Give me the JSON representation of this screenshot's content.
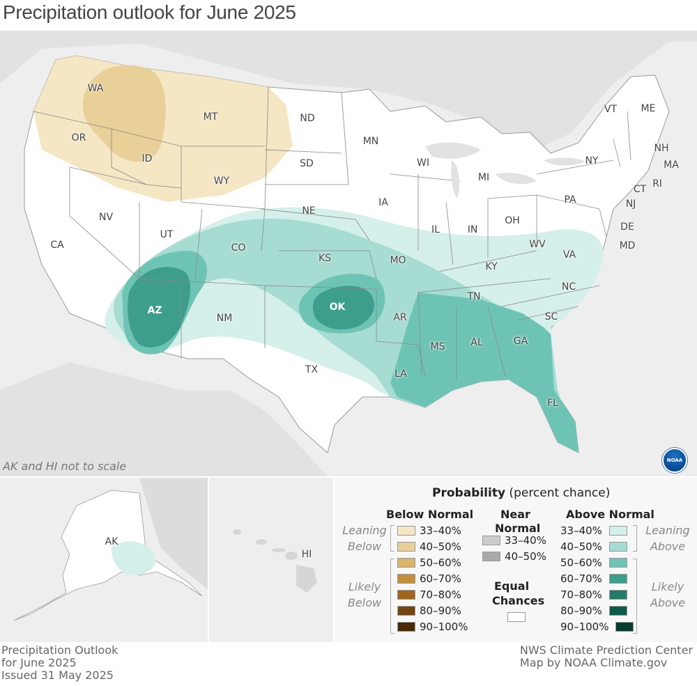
{
  "title": "Precipitation outlook for June 2025",
  "scale_note": "AK and HI not to scale",
  "noaa_logo": "NOAA",
  "colors": {
    "below_33_40": "#f5e6c4",
    "below_40_50": "#e9cf98",
    "near_33_40": "#cccccc",
    "near_40_50": "#a9a9a9",
    "above_33_40": "#d5efea",
    "above_40_50": "#a6dcd2",
    "above_50_60": "#6ec4b4",
    "above_60_70": "#3d9e8c",
    "above_70_80": "#257a69",
    "above_80_90": "#0f5a4b",
    "above_90_100": "#073a30",
    "equal": "#ffffff",
    "background": "#eeeeee"
  },
  "states": {
    "WA": "WA",
    "OR": "OR",
    "ID": "ID",
    "MT": "MT",
    "ND": "ND",
    "SD": "SD",
    "WY": "WY",
    "MN": "MN",
    "WI": "WI",
    "MI": "MI",
    "IA": "IA",
    "NE": "NE",
    "NV": "NV",
    "CA": "CA",
    "UT": "UT",
    "CO": "CO",
    "KS": "KS",
    "MO": "MO",
    "IL": "IL",
    "IN": "IN",
    "OH": "OH",
    "PA": "PA",
    "NY": "NY",
    "VT": "VT",
    "ME": "ME",
    "NH": "NH",
    "MA": "MA",
    "RI": "RI",
    "CT": "CT",
    "NJ": "NJ",
    "DE": "DE",
    "MD": "MD",
    "WV": "WV",
    "VA": "VA",
    "KY": "KY",
    "TN": "TN",
    "NC": "NC",
    "SC": "SC",
    "AZ": "AZ",
    "NM": "NM",
    "OK": "OK",
    "AR": "AR",
    "TX": "TX",
    "LA": "LA",
    "MS": "MS",
    "AL": "AL",
    "GA": "GA",
    "FL": "FL",
    "AK": "AK",
    "HI": "HI"
  },
  "legend": {
    "title_bold": "Probability",
    "title_rest": " (percent chance)",
    "below_head": "Below Normal",
    "near_head_1": "Near",
    "near_head_2": "Normal",
    "above_head": "Above Normal",
    "equal_1": "Equal",
    "equal_2": "Chances",
    "leaning_below_1": "Leaning",
    "leaning_below_2": "Below",
    "likely_below_1": "Likely",
    "likely_below_2": "Below",
    "leaning_above_1": "Leaning",
    "leaning_above_2": "Above",
    "likely_above_1": "Likely",
    "likely_above_2": "Above",
    "ranges": [
      "33–40%",
      "40–50%",
      "50–60%",
      "60–70%",
      "70–80%",
      "80–90%",
      "90–100%"
    ],
    "near_ranges": [
      "33–40%",
      "40–50%"
    ],
    "below_colors": [
      "#f5e6c4",
      "#e9cf98",
      "#d9b46a",
      "#c48e3f",
      "#a0661c",
      "#744510",
      "#4a2a07"
    ],
    "above_colors": [
      "#d5efea",
      "#a6dcd2",
      "#6ec4b4",
      "#3d9e8c",
      "#257a69",
      "#0f5a4b",
      "#073a30"
    ],
    "near_colors": [
      "#cccccc",
      "#a9a9a9"
    ]
  },
  "footer": {
    "left_1": "Precipitation Outlook",
    "left_2": "for June 2025",
    "left_3": "Issued 31 May 2025",
    "right_1": "NWS Climate Prediction Center",
    "right_2": "Map by NOAA Climate.gov"
  }
}
